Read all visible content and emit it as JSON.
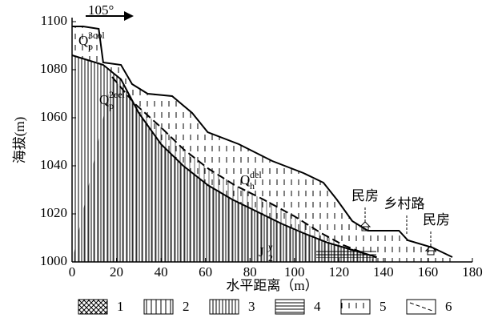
{
  "chart_data": {
    "type": "line",
    "xlabel": "水平距离（m）",
    "ylabel": "海拔(m)",
    "xlim": [
      0,
      180
    ],
    "xticks": [
      0,
      20,
      40,
      60,
      80,
      100,
      120,
      140,
      160,
      180
    ],
    "ylim": [
      1000,
      1100
    ],
    "yticks": [
      1000,
      1020,
      1040,
      1060,
      1080,
      1100
    ],
    "series": [
      {
        "color": "#000000",
        "style": "solid",
        "x": [
          0,
          5,
          12,
          14,
          22,
          27,
          34,
          45,
          54,
          61,
          75,
          90,
          104,
          113,
          119,
          126,
          133,
          147,
          151,
          162,
          171
        ],
        "values": [
          1098,
          1098,
          1097,
          1083,
          1082,
          1074,
          1070,
          1069,
          1062,
          1054,
          1049,
          1042,
          1037,
          1033,
          1026,
          1017,
          1013,
          1013,
          1009,
          1006,
          1002
        ]
      },
      {
        "color": "#000000",
        "style": "dashed",
        "x": [
          18,
          28,
          40,
          50,
          61,
          73,
          86,
          100,
          112,
          122,
          133
        ],
        "values": [
          1077,
          1066,
          1056,
          1047,
          1039,
          1032,
          1026,
          1019,
          1012,
          1007,
          1003
        ]
      },
      {
        "color": "#000000",
        "style": "solid",
        "x": [
          0,
          14,
          22,
          30,
          40,
          50,
          61,
          72,
          83,
          94,
          104,
          115,
          126,
          137
        ],
        "values": [
          1086,
          1082,
          1076,
          1062,
          1049,
          1040,
          1032,
          1026,
          1021,
          1016,
          1012,
          1008,
          1005,
          1002
        ]
      }
    ],
    "annotations": [
      "105°",
      "民房",
      "乡村路",
      "民房"
    ],
    "formations": [
      {
        "base": "Q",
        "sub": "p",
        "sup": "3col"
      },
      {
        "base": "Q",
        "sub": "p",
        "sup": "2eel"
      },
      {
        "base": "Q",
        "sub": "h",
        "sup": "del"
      },
      {
        "base": "J",
        "sub": "2",
        "sup": "y"
      }
    ],
    "legend": [
      "1",
      "2",
      "3",
      "4",
      "5",
      "6"
    ]
  }
}
